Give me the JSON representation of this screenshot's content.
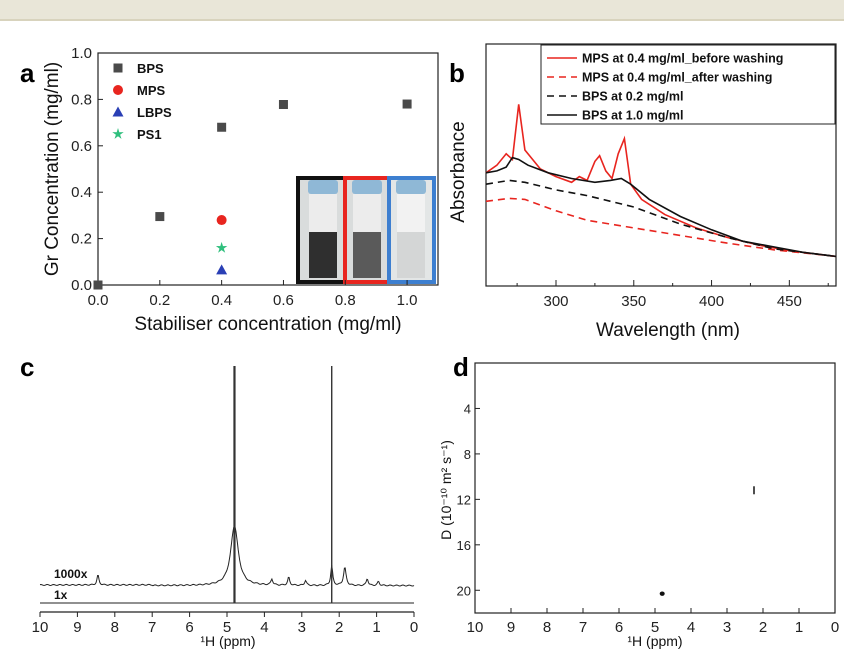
{
  "panels": {
    "a": "a",
    "b": "b",
    "c": "c",
    "d": "d"
  },
  "chart_data": [
    {
      "panel": "a",
      "type": "scatter",
      "xlabel": "Stabiliser concentration (mg/ml)",
      "ylabel": "Gr Concentration (mg/ml)",
      "xlim": [
        0.0,
        1.1
      ],
      "ylim": [
        0.0,
        1.0
      ],
      "xticks": [
        "0.0",
        "0.2",
        "0.4",
        "0.6",
        "0.8",
        "1.0"
      ],
      "yticks": [
        "0.0",
        "0.2",
        "0.4",
        "0.6",
        "0.8",
        "1.0"
      ],
      "series": [
        {
          "name": "BPS",
          "marker": "square",
          "color": "#4a4a4a",
          "points": [
            [
              0.0,
              0.0
            ],
            [
              0.2,
              0.295
            ],
            [
              0.4,
              0.68
            ],
            [
              0.6,
              0.778
            ],
            [
              1.0,
              0.78
            ]
          ]
        },
        {
          "name": "MPS",
          "marker": "circle",
          "color": "#e8251f",
          "points": [
            [
              0.4,
              0.28
            ]
          ]
        },
        {
          "name": "LBPS",
          "marker": "triangle",
          "color": "#2a3fb5",
          "points": [
            [
              0.4,
              0.065
            ]
          ]
        },
        {
          "name": "PS1",
          "marker": "star",
          "color": "#2fbf7d",
          "points": [
            [
              0.4,
              0.16
            ]
          ]
        }
      ],
      "inset_frames": [
        "#111111",
        "#e8251f",
        "#3d7fd0"
      ],
      "legend_position": "top-left"
    },
    {
      "panel": "b",
      "type": "line",
      "xlabel": "Wavelength (nm)",
      "ylabel": "Absorbance",
      "xlim": [
        255,
        480
      ],
      "xticks": [
        "300",
        "350",
        "400",
        "450"
      ],
      "series": [
        {
          "name": "MPS at 0.4 mg/ml_before washing",
          "color": "#e8251f",
          "dash": "solid",
          "x": [
            255,
            262,
            268,
            272,
            276,
            280,
            290,
            300,
            310,
            315,
            320,
            325,
            328,
            332,
            336,
            340,
            344,
            348,
            355,
            370,
            390,
            410,
            430,
            450,
            480
          ],
          "y": [
            0.48,
            0.52,
            0.58,
            0.55,
            0.84,
            0.6,
            0.5,
            0.46,
            0.43,
            0.46,
            0.44,
            0.54,
            0.57,
            0.49,
            0.45,
            0.58,
            0.66,
            0.42,
            0.34,
            0.26,
            0.19,
            0.14,
            0.1,
            0.07,
            0.04
          ]
        },
        {
          "name": "MPS at 0.4 mg/ml_after washing",
          "color": "#e8251f",
          "dash": "dashed",
          "x": [
            255,
            270,
            280,
            300,
            320,
            350,
            380,
            410,
            440,
            480
          ],
          "y": [
            0.33,
            0.345,
            0.34,
            0.28,
            0.23,
            0.19,
            0.15,
            0.11,
            0.075,
            0.04
          ]
        },
        {
          "name": "BPS at 0.2 mg/ml",
          "color": "#111111",
          "dash": "dashed",
          "x": [
            255,
            270,
            280,
            300,
            320,
            350,
            380,
            410,
            440,
            480
          ],
          "y": [
            0.42,
            0.44,
            0.43,
            0.39,
            0.36,
            0.3,
            0.21,
            0.14,
            0.08,
            0.04
          ]
        },
        {
          "name": "BPS at 1.0 mg/ml",
          "color": "#111111",
          "dash": "solid",
          "x": [
            255,
            262,
            268,
            272,
            276,
            282,
            295,
            310,
            325,
            335,
            342,
            348,
            360,
            380,
            400,
            420,
            440,
            460,
            480
          ],
          "y": [
            0.48,
            0.49,
            0.51,
            0.56,
            0.55,
            0.52,
            0.48,
            0.45,
            0.43,
            0.44,
            0.45,
            0.42,
            0.34,
            0.25,
            0.18,
            0.12,
            0.09,
            0.06,
            0.04
          ]
        }
      ],
      "legend_position": "top-right"
    },
    {
      "panel": "c",
      "type": "line",
      "xlabel": "¹H (ppm)",
      "xlim": [
        10,
        0
      ],
      "xticks": [
        "10",
        "9",
        "8",
        "7",
        "6",
        "5",
        "4",
        "3",
        "2",
        "1",
        "0"
      ],
      "trace_labels": [
        "1000x",
        "1x"
      ],
      "peaks_ppm": [
        8.45,
        4.8,
        3.8,
        3.35,
        2.2,
        1.85,
        1.2
      ],
      "spike_ppm": [
        4.8,
        2.2
      ]
    },
    {
      "panel": "d",
      "type": "scatter",
      "xlabel": "¹H (ppm)",
      "ylabel": "D (10⁻¹⁰ m² s⁻¹)",
      "xlim": [
        10,
        0
      ],
      "ylim": [
        0,
        22
      ],
      "xticks": [
        "10",
        "9",
        "8",
        "7",
        "6",
        "5",
        "4",
        "3",
        "2",
        "1",
        "0"
      ],
      "yticks": [
        "4",
        "8",
        "12",
        "16",
        "20"
      ],
      "points": [
        [
          4.8,
          20.3
        ],
        [
          2.25,
          11.2
        ]
      ]
    }
  ]
}
